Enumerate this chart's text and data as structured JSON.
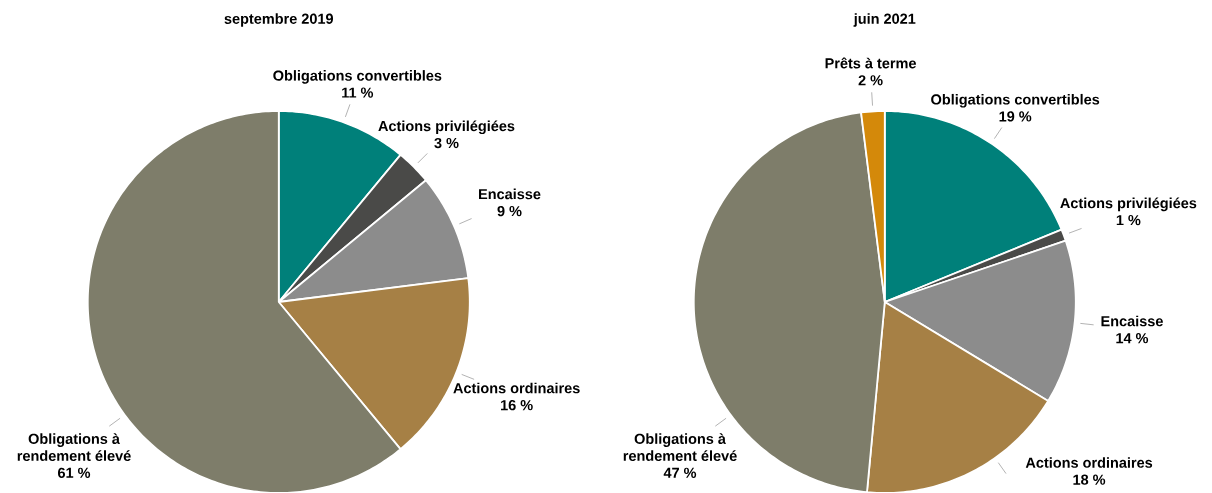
{
  "chart_data": [
    {
      "type": "pie",
      "title": "septembre 2019",
      "categories": [
        "Obligations convertibles",
        "Actions privilégiées",
        "Encaisse",
        "Actions ordinaires",
        "Obligations à rendement élevé"
      ],
      "values": [
        11,
        3,
        9,
        16,
        61
      ],
      "value_labels": [
        "11 %",
        "3 %",
        "9 %",
        "16 %",
        "61 %"
      ],
      "colors": [
        "#00807a",
        "#4a4a48",
        "#8c8c8c",
        "#a68045",
        "#7e7d6a"
      ]
    },
    {
      "type": "pie",
      "title": "juin 2021",
      "categories": [
        "Obligations convertibles",
        "Actions privilégiées",
        "Encaisse",
        "Actions ordinaires",
        "Obligations à rendement élevé",
        "Prêts à terme"
      ],
      "values": [
        19,
        1,
        14,
        18,
        47,
        2
      ],
      "value_labels": [
        "19 %",
        "1 %",
        "14 %",
        "18 %",
        "47 %",
        "2 %"
      ],
      "colors": [
        "#00807a",
        "#4a4a48",
        "#8c8c8c",
        "#a68045",
        "#7e7d6a",
        "#d4890a"
      ]
    }
  ]
}
